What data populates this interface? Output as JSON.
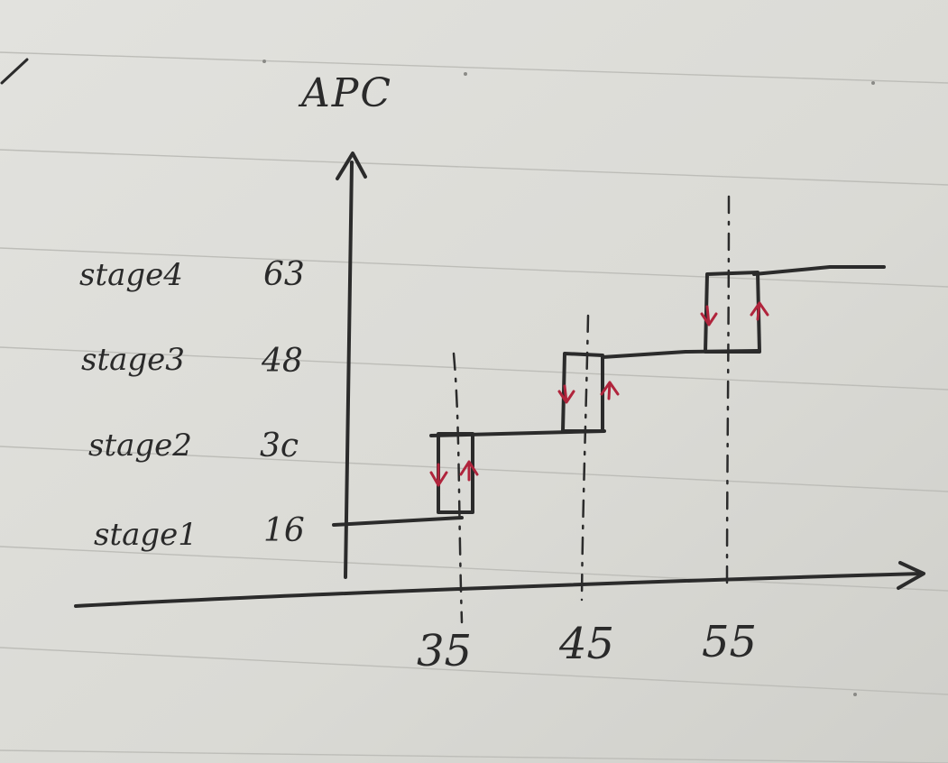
{
  "colors": {
    "paper": "#dcdcd7",
    "ink": "#2b2b2b",
    "rule": "#b8b8b8",
    "arrow_red": "#b0243c"
  },
  "diagram": {
    "y_axis_label": "APC",
    "stages": [
      {
        "label": "stage4",
        "value": "63"
      },
      {
        "label": "stage3",
        "value": "48"
      },
      {
        "label": "stage2",
        "value": "3c"
      },
      {
        "label": "stage1",
        "value": "16"
      }
    ],
    "x_ticks": [
      "35",
      "45",
      "55"
    ],
    "steps": [
      {
        "from": "16",
        "to": "3c",
        "at": "35"
      },
      {
        "from": "3c",
        "to": "48",
        "at": "45"
      },
      {
        "from": "48",
        "to": "63",
        "at": "55"
      }
    ]
  }
}
